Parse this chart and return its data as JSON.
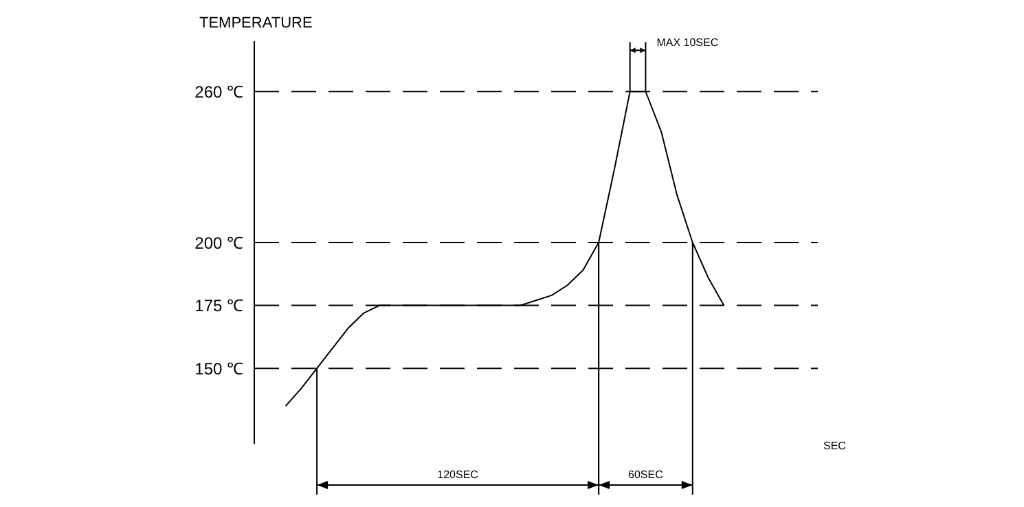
{
  "chart_data": {
    "type": "line",
    "ylabel": "TEMPERATURE",
    "xlabel": "SEC",
    "categories": [
      null,
      null,
      null,
      null,
      null,
      null,
      null,
      null,
      null,
      null,
      null,
      null,
      null,
      null,
      null,
      null,
      null,
      null,
      null,
      null,
      null,
      null,
      null,
      null,
      null,
      null,
      null,
      null,
      null,
      null,
      null,
      null,
      null,
      null,
      null,
      null,
      null
    ],
    "series": [
      {
        "color": "#000000",
        "values": [
          null,
          null,
          135,
          142,
          150,
          158,
          166,
          172,
          175,
          175,
          175,
          175,
          175,
          175,
          175,
          175,
          175,
          175,
          177,
          179,
          183,
          189,
          200,
          229,
          260,
          260,
          244,
          219,
          200,
          186,
          175,
          null,
          null,
          null,
          null,
          null,
          null
        ]
      }
    ],
    "ylim": [
      120,
      280
    ],
    "yticks": [
      {
        "value": 150,
        "label": "150 ℃"
      },
      {
        "value": 175,
        "label": "175 ℃"
      },
      {
        "value": 200,
        "label": "200 ℃"
      },
      {
        "value": 260,
        "label": "260 ℃"
      }
    ],
    "tick_labels": "y",
    "grid": "y",
    "legend": false,
    "annotations": [
      "120SEC",
      "60SEC",
      "MAX 10SEC"
    ]
  }
}
